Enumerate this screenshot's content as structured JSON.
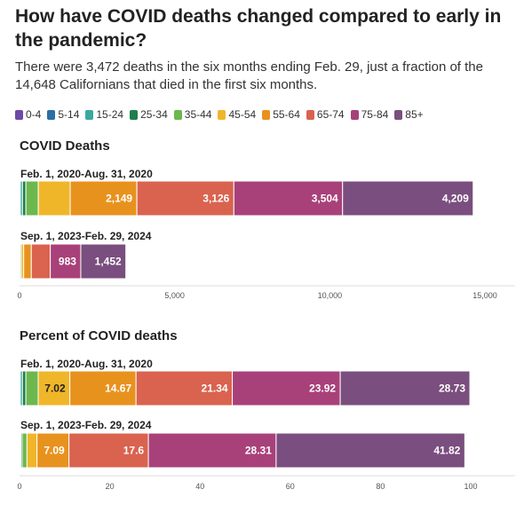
{
  "title": "How have COVID deaths changed compared to early in the pandemic?",
  "subtitle": "There were 3,472 deaths in the six months ending Feb. 29, just a fraction of the 14,648 Californians that died in the first six months.",
  "legend": [
    {
      "label": "0-4",
      "color": "#6b4aa8"
    },
    {
      "label": "5-14",
      "color": "#2a6fa6"
    },
    {
      "label": "15-24",
      "color": "#3aa8a0"
    },
    {
      "label": "25-34",
      "color": "#1e7f4a"
    },
    {
      "label": "35-44",
      "color": "#6cb84e"
    },
    {
      "label": "45-54",
      "color": "#f0b62a"
    },
    {
      "label": "55-64",
      "color": "#e8921e"
    },
    {
      "label": "65-74",
      "color": "#d9634f"
    },
    {
      "label": "75-84",
      "color": "#a8417a"
    },
    {
      "label": "85+",
      "color": "#7a4e7e"
    }
  ],
  "chart_data": [
    {
      "type": "bar",
      "orientation": "horizontal",
      "stacked": true,
      "title": "COVID Deaths",
      "categories": [
        "Feb. 1, 2020-Aug. 31, 2020",
        "Sep. 1, 2023-Feb. 29, 2024"
      ],
      "xlim": [
        0,
        15000
      ],
      "xticks": [
        0,
        5000,
        10000,
        15000
      ],
      "xtick_labels": [
        "0",
        "5,000",
        "10,000",
        "15,000"
      ],
      "series": [
        {
          "name": "0-4",
          "values": [
            10,
            2
          ]
        },
        {
          "name": "5-14",
          "values": [
            15,
            2
          ]
        },
        {
          "name": "15-24",
          "values": [
            70,
            6
          ]
        },
        {
          "name": "25-34",
          "values": [
            110,
            10
          ]
        },
        {
          "name": "35-44",
          "values": [
            400,
            37
          ]
        },
        {
          "name": "45-54",
          "values": [
            1028,
            77
          ]
        },
        {
          "name": "55-64",
          "values": [
            2149,
            246
          ]
        },
        {
          "name": "65-74",
          "values": [
            3126,
            611
          ]
        },
        {
          "name": "75-84",
          "values": [
            3504,
            983
          ]
        },
        {
          "name": "85+",
          "values": [
            4209,
            1452
          ]
        }
      ],
      "data_labels": [
        {
          "category": 0,
          "series": "55-64",
          "text": "2,149"
        },
        {
          "category": 0,
          "series": "65-74",
          "text": "3,126"
        },
        {
          "category": 0,
          "series": "75-84",
          "text": "3,504"
        },
        {
          "category": 0,
          "series": "85+",
          "text": "4,209"
        },
        {
          "category": 1,
          "series": "75-84",
          "text": "983"
        },
        {
          "category": 1,
          "series": "85+",
          "text": "1,452"
        }
      ]
    },
    {
      "type": "bar",
      "orientation": "horizontal",
      "stacked": true,
      "title": "Percent of COVID deaths",
      "categories": [
        "Feb. 1, 2020-Aug. 31, 2020",
        "Sep. 1, 2023-Feb. 29, 2024"
      ],
      "xlim": [
        0,
        100
      ],
      "xticks": [
        0,
        20,
        40,
        60,
        80,
        100
      ],
      "xtick_labels": [
        "0",
        "20",
        "40",
        "60",
        "80",
        "100"
      ],
      "series": [
        {
          "name": "0-4",
          "values": [
            0.07,
            0.06
          ]
        },
        {
          "name": "5-14",
          "values": [
            0.1,
            0.06
          ]
        },
        {
          "name": "15-24",
          "values": [
            0.48,
            0.17
          ]
        },
        {
          "name": "25-34",
          "values": [
            0.75,
            0.29
          ]
        },
        {
          "name": "35-44",
          "values": [
            2.73,
            1.07
          ]
        },
        {
          "name": "45-54",
          "values": [
            7.02,
            2.22
          ]
        },
        {
          "name": "55-64",
          "values": [
            14.67,
            7.09
          ]
        },
        {
          "name": "65-74",
          "values": [
            21.34,
            17.6
          ]
        },
        {
          "name": "75-84",
          "values": [
            23.92,
            28.31
          ]
        },
        {
          "name": "85+",
          "values": [
            28.73,
            41.82
          ]
        }
      ],
      "data_labels": [
        {
          "category": 0,
          "series": "45-54",
          "text": "7.02"
        },
        {
          "category": 0,
          "series": "55-64",
          "text": "14.67"
        },
        {
          "category": 0,
          "series": "65-74",
          "text": "21.34"
        },
        {
          "category": 0,
          "series": "75-84",
          "text": "23.92"
        },
        {
          "category": 0,
          "series": "85+",
          "text": "28.73"
        },
        {
          "category": 1,
          "series": "55-64",
          "text": "7.09"
        },
        {
          "category": 1,
          "series": "65-74",
          "text": "17.6"
        },
        {
          "category": 1,
          "series": "75-84",
          "text": "28.31"
        },
        {
          "category": 1,
          "series": "85+",
          "text": "41.82"
        }
      ]
    }
  ]
}
